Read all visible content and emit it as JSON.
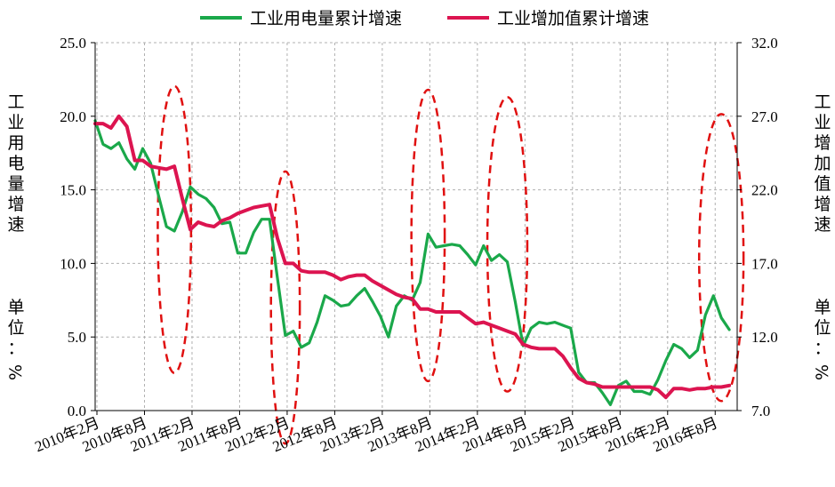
{
  "chart_data": {
    "type": "line",
    "title": "",
    "legend": {
      "placement": "top-center"
    },
    "grid": true,
    "x_labels": [
      "2010年2月",
      "2010年8月",
      "2011年2月",
      "2011年8月",
      "2012年2月",
      "2012年8月",
      "2013年2月",
      "2013年8月",
      "2014年2月",
      "2014年8月",
      "2015年2月",
      "2015年8月",
      "2016年2月",
      "2016年8月"
    ],
    "y_left": {
      "label": "工业用电量增速",
      "unit_label": "单位：%",
      "ylim": [
        0,
        25
      ],
      "ticks": [
        "0.0",
        "5.0",
        "10.0",
        "15.0",
        "20.0",
        "25.0"
      ]
    },
    "y_right": {
      "label": "工业增加值增速",
      "unit_label": "单位：%",
      "ylim": [
        7,
        32
      ],
      "ticks": [
        "7.0",
        "12.0",
        "17.0",
        "22.0",
        "27.0",
        "32.0"
      ]
    },
    "series": [
      {
        "name": "工业用电量累计增速",
        "color": "#1aa84a",
        "axis": "left",
        "x": [
          0,
          1,
          2,
          3,
          4,
          5,
          6,
          7,
          8,
          9,
          10,
          11,
          12,
          13,
          14,
          15,
          16,
          17,
          18,
          19,
          20,
          21,
          22,
          23,
          24,
          25,
          26,
          27,
          28,
          29,
          30,
          31,
          32,
          33,
          34,
          35,
          36,
          37,
          38,
          39,
          40,
          41,
          42,
          43,
          44,
          45,
          46,
          47,
          48,
          49,
          50,
          51,
          52,
          53,
          54,
          55,
          56,
          57,
          58,
          59,
          60,
          61,
          62,
          63,
          64,
          65,
          66,
          67,
          68,
          69,
          70,
          71,
          72,
          73,
          74,
          75,
          76,
          77,
          78,
          79,
          80
        ],
        "values": [
          19.7,
          18.1,
          17.8,
          18.2,
          17.1,
          16.4,
          17.8,
          16.8,
          14.6,
          12.5,
          12.2,
          13.5,
          15.2,
          14.7,
          14.4,
          13.8,
          12.7,
          12.8,
          10.7,
          10.7,
          12.1,
          13.0,
          13.0,
          9.0,
          5.1,
          5.4,
          4.3,
          4.6,
          6.0,
          7.8,
          7.5,
          7.1,
          7.2,
          7.8,
          8.3,
          7.4,
          6.4,
          5.0,
          7.1,
          7.8,
          7.5,
          8.7,
          12.0,
          11.1,
          11.2,
          11.3,
          11.2,
          10.6,
          9.9,
          11.2,
          10.2,
          10.6,
          10.1,
          7.4,
          4.4,
          5.6,
          6.0,
          5.9,
          6.0,
          5.8,
          5.6,
          2.6,
          1.9,
          1.9,
          1.2,
          0.4,
          1.7,
          2.0,
          1.3,
          1.3,
          1.1,
          2.1,
          3.4,
          4.5,
          4.2,
          3.6,
          4.1,
          6.5,
          7.8,
          6.3,
          5.5
        ]
      },
      {
        "name": "工业增加值累计增速",
        "color": "#dc1450",
        "axis": "right",
        "x": [
          0,
          1,
          2,
          3,
          4,
          5,
          6,
          7,
          8,
          9,
          10,
          11,
          12,
          13,
          14,
          15,
          16,
          17,
          18,
          19,
          20,
          21,
          22,
          23,
          24,
          25,
          26,
          27,
          28,
          29,
          30,
          31,
          32,
          33,
          34,
          35,
          36,
          37,
          38,
          39,
          40,
          41,
          42,
          43,
          44,
          45,
          46,
          47,
          48,
          49,
          50,
          51,
          52,
          53,
          54,
          55,
          56,
          57,
          58,
          59,
          60,
          61,
          62,
          63,
          64,
          65,
          66,
          67,
          68,
          69,
          70,
          71,
          72,
          73,
          74,
          75,
          76,
          77,
          78,
          79,
          80
        ],
        "values": [
          26.5,
          26.5,
          26.2,
          27.0,
          26.3,
          24.0,
          24.0,
          23.6,
          23.5,
          23.4,
          23.6,
          21.4,
          19.3,
          19.8,
          19.6,
          19.5,
          19.9,
          20.1,
          20.4,
          20.6,
          20.8,
          20.9,
          21.0,
          18.7,
          17.0,
          17.0,
          16.5,
          16.4,
          16.4,
          16.4,
          16.2,
          15.9,
          16.1,
          16.2,
          16.2,
          15.8,
          15.5,
          15.2,
          14.9,
          14.7,
          14.6,
          13.9,
          13.9,
          13.7,
          13.7,
          13.7,
          13.7,
          13.3,
          12.9,
          13.0,
          12.8,
          12.6,
          12.4,
          12.2,
          11.5,
          11.3,
          11.2,
          11.2,
          11.2,
          10.7,
          9.9,
          9.2,
          8.9,
          8.8,
          8.6,
          8.6,
          8.6,
          8.6,
          8.6,
          8.6,
          8.6,
          8.4,
          7.9,
          8.5,
          8.5,
          8.4,
          8.5,
          8.5,
          8.6,
          8.6,
          8.7
        ]
      }
    ],
    "annotations": "red dashed ellipses highlight divergence periods"
  }
}
